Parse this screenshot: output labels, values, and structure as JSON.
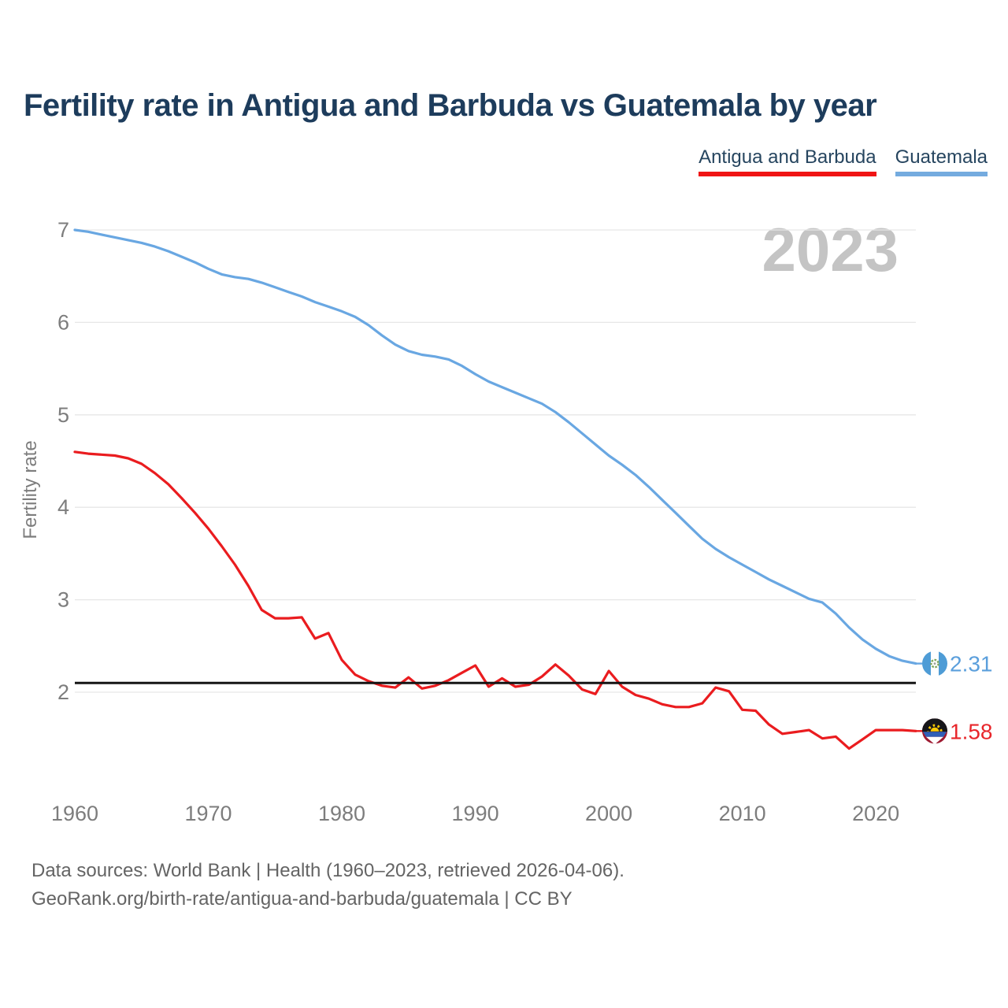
{
  "header": {
    "title": "Fertility rate in Antigua and Barbuda vs Guatemala by year"
  },
  "legend": {
    "items": [
      {
        "label": "Antigua and Barbuda",
        "color": "#f01414"
      },
      {
        "label": "Guatemala",
        "color": "#74abdf"
      }
    ]
  },
  "watermark": "2023",
  "axes": {
    "ylabel": "Fertility rate",
    "yticks": [
      2,
      3,
      4,
      5,
      6,
      7
    ],
    "xticks": [
      1960,
      1970,
      1980,
      1990,
      2000,
      2010,
      2020
    ]
  },
  "end_labels": {
    "guatemala": {
      "value": "2.31",
      "color": "#5b9fdc"
    },
    "antigua": {
      "value": "1.58",
      "color": "#e8262b"
    }
  },
  "footer": {
    "line1": "Data sources: World Bank | Health (1960–2023, retrieved 2026-04-06).",
    "line2": "GeoRank.org/birth-rate/antigua-and-barbuda/guatemala | CC BY"
  },
  "chart_data": {
    "type": "line",
    "title": "Fertility rate in Antigua and Barbuda vs Guatemala by year",
    "xlabel": "",
    "ylabel": "Fertility rate",
    "ylim": [
      1.3,
      7.05
    ],
    "grid": "horizontal",
    "legend_position": "top-right",
    "yticks": [
      2,
      3,
      4,
      5,
      6,
      7
    ],
    "xticks": [
      1960,
      1970,
      1980,
      1990,
      2000,
      2010,
      2020
    ],
    "reference_line": {
      "value": 2.1,
      "color": "#151515"
    },
    "x": [
      1960,
      1961,
      1962,
      1963,
      1964,
      1965,
      1966,
      1967,
      1968,
      1969,
      1970,
      1971,
      1972,
      1973,
      1974,
      1975,
      1976,
      1977,
      1978,
      1979,
      1980,
      1981,
      1982,
      1983,
      1984,
      1985,
      1986,
      1987,
      1988,
      1989,
      1990,
      1991,
      1992,
      1993,
      1994,
      1995,
      1996,
      1997,
      1998,
      1999,
      2000,
      2001,
      2002,
      2003,
      2004,
      2005,
      2006,
      2007,
      2008,
      2009,
      2010,
      2011,
      2012,
      2013,
      2014,
      2015,
      2016,
      2017,
      2018,
      2019,
      2020,
      2021,
      2022,
      2023
    ],
    "series": [
      {
        "name": "Antigua and Barbuda",
        "color": "#ea1c1f",
        "end_label": "1.58",
        "values": [
          4.6,
          4.58,
          4.57,
          4.56,
          4.53,
          4.47,
          4.37,
          4.25,
          4.1,
          3.94,
          3.77,
          3.58,
          3.38,
          3.15,
          2.89,
          2.8,
          2.8,
          2.81,
          2.58,
          2.64,
          2.35,
          2.19,
          2.12,
          2.07,
          2.05,
          2.16,
          2.04,
          2.07,
          2.13,
          2.21,
          2.29,
          2.06,
          2.15,
          2.06,
          2.08,
          2.17,
          2.3,
          2.18,
          2.03,
          1.98,
          2.23,
          2.06,
          1.97,
          1.93,
          1.87,
          1.84,
          1.84,
          1.88,
          2.05,
          2.01,
          1.81,
          1.8,
          1.65,
          1.55,
          1.57,
          1.59,
          1.5,
          1.52,
          1.39,
          1.49,
          1.59,
          1.59,
          1.59,
          1.58
        ]
      },
      {
        "name": "Guatemala",
        "color": "#69a7e2",
        "end_label": "2.31",
        "values": [
          7.0,
          6.98,
          6.95,
          6.92,
          6.89,
          6.86,
          6.82,
          6.77,
          6.71,
          6.65,
          6.58,
          6.52,
          6.49,
          6.47,
          6.43,
          6.38,
          6.33,
          6.28,
          6.22,
          6.17,
          6.12,
          6.06,
          5.97,
          5.86,
          5.76,
          5.69,
          5.65,
          5.63,
          5.6,
          5.53,
          5.44,
          5.36,
          5.3,
          5.24,
          5.18,
          5.12,
          5.03,
          4.92,
          4.8,
          4.68,
          4.56,
          4.46,
          4.35,
          4.22,
          4.08,
          3.94,
          3.8,
          3.66,
          3.55,
          3.46,
          3.38,
          3.3,
          3.22,
          3.15,
          3.08,
          3.01,
          2.97,
          2.85,
          2.7,
          2.57,
          2.47,
          2.39,
          2.34,
          2.31
        ]
      }
    ]
  }
}
